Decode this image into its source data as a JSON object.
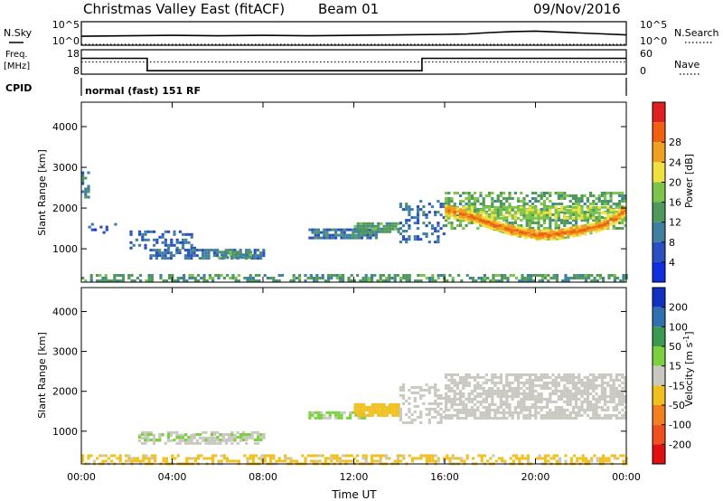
{
  "header": {
    "title": "Christmas Valley East (fitACF)",
    "beam": "Beam 01",
    "date": "09/Nov/2016"
  },
  "summary_labels": {
    "nsky": "N.Sky",
    "nsearch": "N.Search",
    "freq_line1": "Freq.",
    "freq_line2": "[MHz]",
    "nave": "Nave",
    "cpid": "CPID",
    "cpid_value": "normal (fast) 151 RF",
    "noise_left_top": "10^5",
    "noise_left_bottom": "10^0",
    "noise_right_top": "10^5",
    "noise_right_bottom": "10^0",
    "freq_left_top": "18",
    "freq_left_bottom": "8",
    "nave_right_top": "60",
    "nave_right_bottom": "0"
  },
  "chart_data": [
    {
      "type": "line",
      "panel": "noise",
      "x_unit": "hours UT",
      "series": [
        {
          "name": "N.Sky",
          "style": "solid",
          "x": [
            0,
            2,
            4,
            6,
            8,
            10,
            12,
            14,
            16,
            17,
            18,
            19,
            20,
            21,
            22,
            23,
            24
          ],
          "y": [
            1.9,
            2.0,
            2.1,
            2.0,
            2.1,
            2.0,
            2.1,
            2.2,
            2.3,
            2.4,
            2.7,
            2.9,
            3.0,
            2.8,
            2.6,
            2.4,
            2.2
          ]
        },
        {
          "name": "N.Search",
          "style": "dotted",
          "x": [
            0,
            24
          ],
          "y": [
            0,
            0
          ]
        }
      ],
      "ylim": [
        0,
        5
      ],
      "ylabel_scale": "log10"
    },
    {
      "type": "line",
      "panel": "freq_nave",
      "series": [
        {
          "name": "Freq. [MHz]",
          "style": "solid",
          "x": [
            0,
            2.9,
            2.9,
            15.0,
            15.0,
            24
          ],
          "y": [
            14.5,
            14.5,
            9.4,
            9.4,
            14.5,
            14.5
          ]
        },
        {
          "name": "Nave",
          "style": "dotted",
          "x": [
            0,
            24
          ],
          "y": [
            30,
            30
          ]
        }
      ],
      "ylim_left": [
        8,
        18
      ],
      "ylim_right": [
        0,
        60
      ]
    },
    {
      "type": "heatmap",
      "panel": "power",
      "xlabel": "",
      "ylabel": "Slant Range [km]",
      "xlim": [
        0,
        24
      ],
      "ylim": [
        180,
        4600
      ],
      "yticks": [
        1000,
        2000,
        3000,
        4000
      ],
      "colorbar": {
        "label": "Power [dB]",
        "ticks": [
          "4",
          "8",
          "12",
          "16",
          "20",
          "24",
          "28"
        ],
        "colors": [
          "#1030e0",
          "#2a50c0",
          "#3f7fa0",
          "#4f9a5a",
          "#7cc44a",
          "#f0e040",
          "#f0a020",
          "#f06010",
          "#e02020"
        ],
        "range": [
          0,
          32
        ]
      },
      "regions": [
        {
          "x0": 0.0,
          "x1": 24.0,
          "r0": 200,
          "r1": 380,
          "value": 12,
          "density": 0.55
        },
        {
          "x0": 0.0,
          "x1": 0.3,
          "r0": 2300,
          "r1": 2900,
          "value": 9,
          "density": 0.6
        },
        {
          "x0": 0.3,
          "x1": 1.6,
          "r0": 1350,
          "r1": 1700,
          "value": 6,
          "density": 0.12
        },
        {
          "x0": 2.0,
          "x1": 5.0,
          "r0": 1050,
          "r1": 1450,
          "value": 7,
          "density": 0.35
        },
        {
          "x0": 3.0,
          "x1": 8.0,
          "r0": 750,
          "r1": 1000,
          "value": 8,
          "density": 0.7
        },
        {
          "x0": 6.0,
          "x1": 7.5,
          "r0": 800,
          "r1": 950,
          "value": 12,
          "density": 0.8
        },
        {
          "x0": 10.0,
          "x1": 13.0,
          "r0": 1300,
          "r1": 1500,
          "value": 9,
          "density": 0.85
        },
        {
          "x0": 12.0,
          "x1": 14.0,
          "r0": 1450,
          "r1": 1650,
          "value": 12,
          "density": 0.85
        },
        {
          "x0": 14.0,
          "x1": 16.0,
          "r0": 1200,
          "r1": 2200,
          "value": 8,
          "density": 0.35
        },
        {
          "x0": 16.0,
          "x1": 24.0,
          "r0": 1500,
          "r1": 2400,
          "value": 13,
          "density": 0.55
        },
        {
          "x0": 16.0,
          "x1": 24.0,
          "r0": 1750,
          "r1": 2050,
          "value": 17,
          "density": 0.75
        }
      ],
      "traces": [
        {
          "value": 27,
          "width_km": 120,
          "x": [
            16.0,
            17.0,
            18.0,
            19.0,
            20.0,
            21.0,
            22.0,
            22.5,
            23.0,
            23.5,
            24.0
          ],
          "y": [
            2000,
            1850,
            1650,
            1480,
            1380,
            1400,
            1500,
            1550,
            1650,
            1800,
            2050
          ]
        }
      ],
      "x_tick_labels": [
        "00:00",
        "04:00",
        "08:00",
        "12:00",
        "16:00",
        "20:00",
        "00:00"
      ]
    },
    {
      "type": "heatmap",
      "panel": "velocity",
      "xlabel": "Time UT",
      "ylabel": "Slant Range [km]",
      "xlim": [
        0,
        24
      ],
      "ylim": [
        180,
        4600
      ],
      "yticks": [
        1000,
        2000,
        3000,
        4000
      ],
      "colorbar": {
        "label": "Velocity [m s^-1]",
        "ticks": [
          "200",
          "100",
          "50",
          "15",
          "-15",
          "-50",
          "-100",
          "-200"
        ],
        "colors": [
          "#1030c0",
          "#2f70b0",
          "#3a9a50",
          "#7cd040",
          "#c8c8c0",
          "#f0c020",
          "#f08020",
          "#f05020",
          "#e01010"
        ],
        "range": [
          -250,
          250
        ]
      },
      "regions": [
        {
          "x0": 0.0,
          "x1": 24.0,
          "r0": 200,
          "r1": 420,
          "value": -40,
          "density": 0.5
        },
        {
          "x0": 2.5,
          "x1": 8.0,
          "r0": 700,
          "r1": 1000,
          "value": 0,
          "density": 0.55
        },
        {
          "x0": 2.5,
          "x1": 8.0,
          "r0": 800,
          "r1": 950,
          "value": 30,
          "density": 0.35
        },
        {
          "x0": 10.0,
          "x1": 12.5,
          "r0": 1300,
          "r1": 1500,
          "value": 35,
          "density": 0.8
        },
        {
          "x0": 12.0,
          "x1": 14.0,
          "r0": 1400,
          "r1": 1700,
          "value": -45,
          "density": 0.85
        },
        {
          "x0": 14.0,
          "x1": 16.0,
          "r0": 1200,
          "r1": 2200,
          "value": 0,
          "density": 0.4
        },
        {
          "x0": 16.0,
          "x1": 24.0,
          "r0": 1300,
          "r1": 2450,
          "value": 0,
          "density": 0.7
        }
      ],
      "traces": [],
      "x_tick_labels": [
        "00:00",
        "04:00",
        "08:00",
        "12:00",
        "16:00",
        "20:00",
        "00:00"
      ]
    }
  ]
}
